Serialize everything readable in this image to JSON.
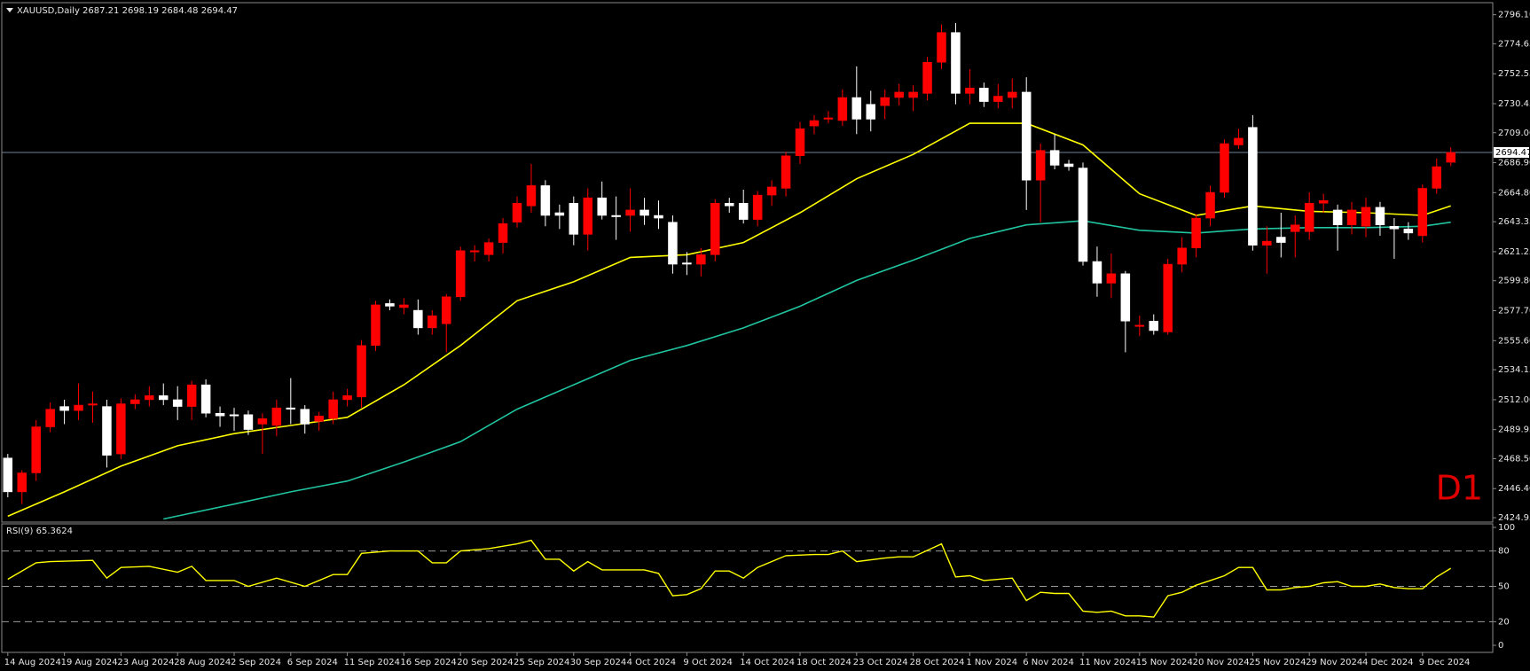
{
  "chart_data": {
    "type": "candlestick",
    "symbol": "XAUUSD,Daily",
    "timeframe_label": "D1",
    "bull_color": "#ff0000",
    "bear_color": "#ffffff",
    "price_line_color": "#71849a",
    "categories": [
      "14 Aug 2024",
      null,
      null,
      null,
      "19 Aug 2024",
      null,
      null,
      null,
      "23 Aug 2024",
      null,
      null,
      null,
      "28 Aug 2024",
      null,
      null,
      null,
      "2 Sep 2024",
      null,
      null,
      null,
      "6 Sep 2024",
      null,
      null,
      null,
      "11 Sep 2024",
      null,
      null,
      null,
      "16 Sep 2024",
      null,
      null,
      null,
      "20 Sep 2024",
      null,
      null,
      null,
      "25 Sep 2024",
      null,
      null,
      null,
      "30 Sep 2024",
      null,
      null,
      null,
      "4 Oct 2024",
      null,
      null,
      null,
      "9 Oct 2024",
      null,
      null,
      null,
      "14 Oct 2024",
      null,
      null,
      null,
      "18 Oct 2024",
      null,
      null,
      null,
      "23 Oct 2024",
      null,
      null,
      null,
      "28 Oct 2024",
      null,
      null,
      null,
      "1 Nov 2024",
      null,
      null,
      null,
      "6 Nov 2024",
      null,
      null,
      null,
      "11 Nov 2024",
      null,
      null,
      null,
      "15 Nov 2024",
      null,
      null,
      null,
      "20 Nov 2024",
      null,
      null,
      null,
      "25 Nov 2024",
      null,
      null,
      null,
      "29 Nov 2024",
      null,
      null,
      null,
      "4 Dec 2024",
      null,
      null,
      null,
      "9 Dec 2024",
      null,
      null
    ],
    "open": [
      2469,
      2444,
      2458,
      2492,
      2507,
      2504,
      2508,
      2507,
      2472,
      2509,
      2512,
      2515,
      2512,
      2507,
      2523,
      2502,
      2501,
      2501,
      2494,
      2493,
      2506,
      2505,
      2496,
      2498,
      2512,
      2514,
      2552,
      2583,
      2580,
      2578,
      2565,
      2568,
      2588,
      2621,
      2619,
      2628,
      2643,
      2655,
      2670,
      2650,
      2657,
      2634,
      2661,
      2648,
      2648,
      2652,
      2648,
      2643,
      2613,
      2612,
      2619,
      2657,
      2657,
      2645,
      2663,
      2668,
      2692,
      2714,
      2719,
      2718,
      2735,
      2730,
      2729,
      2735,
      2735,
      2738,
      2761,
      2783,
      2738,
      2742,
      2732,
      2735,
      2739,
      2674,
      2696,
      2686,
      2683,
      2614,
      2598,
      2605,
      2566,
      2570,
      2562,
      2612,
      2624,
      2646,
      2665,
      2700,
      2713,
      2626,
      2632,
      2636,
      2636,
      2657,
      2652,
      2641,
      2640,
      2654,
      2640,
      2638,
      2633,
      2668,
      2687.21
    ],
    "high": [
      2472,
      2460,
      2497,
      2510,
      2512,
      2524,
      2518,
      2512,
      2513,
      2516,
      2522,
      2524,
      2522,
      2526,
      2527,
      2507,
      2506,
      2504,
      2502,
      2512,
      2528,
      2508,
      2503,
      2518,
      2520,
      2556,
      2585,
      2586,
      2587,
      2586,
      2578,
      2590,
      2625,
      2626,
      2631,
      2646,
      2662,
      2686,
      2674,
      2656,
      2662,
      2668,
      2673,
      2662,
      2668,
      2661,
      2659,
      2648,
      2621,
      2624,
      2660,
      2661,
      2667,
      2666,
      2674,
      2695,
      2717,
      2722,
      2725,
      2741,
      2758,
      2740,
      2741,
      2745,
      2744,
      2765,
      2789,
      2790,
      2756,
      2746,
      2745,
      2749,
      2750,
      2701,
      2708,
      2689,
      2687,
      2625,
      2620,
      2607,
      2574,
      2575,
      2616,
      2632,
      2649,
      2670,
      2704,
      2712,
      2722,
      2640,
      2650,
      2648,
      2665,
      2664,
      2656,
      2658,
      2661,
      2658,
      2646,
      2643,
      2671,
      2690,
      2698.19
    ],
    "low": [
      2440,
      2435,
      2452,
      2488,
      2494,
      2497,
      2495,
      2462,
      2468,
      2505,
      2507,
      2508,
      2497,
      2497,
      2499,
      2492,
      2489,
      2486,
      2472,
      2485,
      2494,
      2487,
      2489,
      2494,
      2507,
      2506,
      2548,
      2578,
      2575,
      2560,
      2560,
      2547,
      2585,
      2614,
      2614,
      2620,
      2639,
      2650,
      2640,
      2638,
      2626,
      2622,
      2645,
      2630,
      2636,
      2641,
      2638,
      2605,
      2604,
      2603,
      2614,
      2650,
      2642,
      2640,
      2655,
      2662,
      2686,
      2708,
      2716,
      2714,
      2708,
      2710,
      2719,
      2729,
      2725,
      2733,
      2756,
      2730,
      2730,
      2728,
      2727,
      2727,
      2652,
      2643,
      2682,
      2681,
      2611,
      2588,
      2587,
      2547,
      2559,
      2560,
      2560,
      2606,
      2617,
      2640,
      2661,
      2697,
      2622,
      2605,
      2617,
      2617,
      2630,
      2650,
      2622,
      2634,
      2632,
      2633,
      2616,
      2630,
      2628,
      2664,
      2684.48
    ],
    "close": [
      2444,
      2458,
      2492,
      2505,
      2504,
      2508,
      2509,
      2471,
      2509,
      2512,
      2515,
      2512,
      2507,
      2523,
      2502,
      2500,
      2500,
      2490,
      2498,
      2506,
      2505,
      2494,
      2500,
      2512,
      2515,
      2552,
      2582,
      2581,
      2582,
      2565,
      2574,
      2588,
      2622,
      2622,
      2628,
      2642,
      2657,
      2670,
      2648,
      2648,
      2634,
      2661,
      2648,
      2647,
      2652,
      2648,
      2646,
      2612,
      2612,
      2619,
      2657,
      2655,
      2645,
      2663,
      2669,
      2692,
      2712,
      2718,
      2720,
      2735,
      2719,
      2719,
      2735,
      2739,
      2739,
      2761,
      2783,
      2738,
      2742,
      2732,
      2736,
      2739,
      2674,
      2696,
      2685,
      2684,
      2614,
      2598,
      2605,
      2570,
      2567,
      2563,
      2612,
      2624,
      2646,
      2665,
      2701,
      2705,
      2626,
      2629,
      2628,
      2641,
      2657,
      2659,
      2641,
      2652,
      2654,
      2641,
      2638,
      2635,
      2668,
      2684,
      2694.47
    ],
    "ylim": [
      2421.7,
      2805
    ],
    "yticks": [
      {
        "value": 2796.1,
        "label": "2796.10"
      },
      {
        "value": 2774.65,
        "label": "2774.65"
      },
      {
        "value": 2752.55,
        "label": "2752.55"
      },
      {
        "value": 2730.45,
        "label": "2730.45"
      },
      {
        "value": 2709,
        "label": "2709.00"
      },
      {
        "value": 2686.9,
        "label": "2686.90"
      },
      {
        "value": 2664.8,
        "label": "2664.80"
      },
      {
        "value": 2643.35,
        "label": "2643.35"
      },
      {
        "value": 2621.25,
        "label": "2621.25"
      },
      {
        "value": 2599.8,
        "label": "2599.80"
      },
      {
        "value": 2577.7,
        "label": "2577.70"
      },
      {
        "value": 2555.6,
        "label": "2555.60"
      },
      {
        "value": 2534.15,
        "label": "2534.15"
      },
      {
        "value": 2512,
        "label": "2512.00"
      },
      {
        "value": 2489.95,
        "label": "2489.95"
      },
      {
        "value": 2468.5,
        "label": "2468.50"
      },
      {
        "value": 2446.4,
        "label": "2446.40"
      },
      {
        "value": 2424.95,
        "label": "2424.95"
      }
    ],
    "ma_series": [
      {
        "color": "#ffff00",
        "x": [
          0,
          4,
          8,
          12,
          16,
          20,
          24,
          28,
          32,
          36,
          40,
          44,
          48,
          52,
          56,
          60,
          64,
          68,
          72,
          76,
          80,
          84,
          88,
          92,
          96,
          100,
          102
        ],
        "values": [
          2426,
          2444,
          2463,
          2478,
          2487,
          2493,
          2499,
          2523,
          2552,
          2585,
          2599,
          2617,
          2619,
          2628,
          2650,
          2675,
          2693,
          2716,
          2716,
          2700,
          2664,
          2648,
          2655,
          2651,
          2650,
          2648,
          2655
        ]
      },
      {
        "color": "#20c4a0",
        "x": [
          11,
          16,
          20,
          24,
          28,
          32,
          36,
          40,
          44,
          48,
          52,
          56,
          60,
          64,
          68,
          72,
          76,
          80,
          84,
          88,
          92,
          96,
          100,
          102
        ],
        "values": [
          2424,
          2435,
          2444,
          2452,
          2466,
          2481,
          2505,
          2523,
          2541,
          2552,
          2565,
          2581,
          2600,
          2615,
          2631,
          2641,
          2644,
          2637,
          2635,
          2638,
          2639,
          2639,
          2640,
          2643
        ]
      }
    ],
    "indicator": {
      "type": "line",
      "title": "RSI(9)",
      "color": "#ffff00",
      "x": [
        0,
        2,
        3,
        6,
        7,
        8,
        10,
        12,
        13,
        14,
        16,
        17,
        19,
        21,
        23,
        24,
        25,
        27,
        29,
        30,
        31,
        32,
        34,
        36,
        37,
        38,
        39,
        40,
        41,
        42,
        44,
        45,
        46,
        47,
        48,
        49,
        50,
        51,
        52,
        53,
        55,
        57,
        58,
        59,
        60,
        62,
        63,
        64,
        66,
        67,
        68,
        69,
        71,
        72,
        73,
        74,
        75,
        76,
        77,
        78,
        79,
        80,
        81,
        82,
        83,
        84,
        85,
        86,
        87,
        88,
        89,
        90,
        91,
        92,
        93,
        94,
        95,
        96,
        97,
        98,
        99,
        100,
        101,
        102
      ],
      "values": [
        56,
        70,
        71,
        72,
        57,
        66,
        67,
        62,
        67,
        55,
        55,
        50,
        57,
        50,
        60,
        60,
        78,
        80,
        80,
        70,
        70,
        80,
        82,
        86,
        89,
        73,
        73,
        63,
        71,
        64,
        64,
        64,
        61,
        42,
        43,
        48,
        63,
        63,
        57,
        66,
        76,
        77,
        77,
        80,
        71,
        74,
        75,
        75,
        86,
        58,
        59,
        55,
        57,
        38,
        45,
        44,
        44,
        29,
        28,
        29,
        25,
        25,
        24,
        42,
        45,
        51,
        55,
        59,
        66,
        66,
        47,
        47,
        49,
        50,
        53,
        54,
        50,
        50,
        52,
        49,
        48,
        48,
        58,
        65.3624
      ],
      "ylim": [
        -6,
        103
      ],
      "yticks": [
        100,
        80,
        50,
        20,
        0
      ],
      "levels": [
        80,
        50,
        20
      ]
    }
  }
}
